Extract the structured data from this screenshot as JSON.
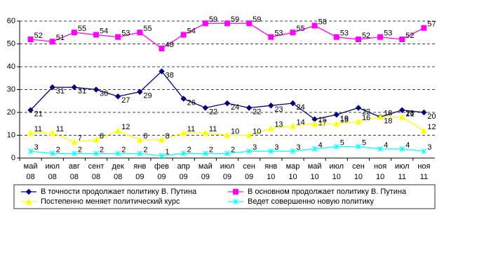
{
  "chart_data": {
    "type": "line",
    "categories": [
      "май 08",
      "июл 08",
      "авг 08",
      "сент 08",
      "дек 08",
      "янв 09",
      "фев 09",
      "апр 09",
      "май 09",
      "июл 09",
      "сен 09",
      "янв 10",
      "мар 10",
      "май 10",
      "июл 10",
      "сен 10",
      "ноя 10",
      "июл 11",
      "ноя 11"
    ],
    "series": [
      {
        "name": "В точности продолжает политику В. Путина",
        "color": "#000080",
        "marker": "diamond",
        "values": [
          21,
          31,
          31,
          30,
          27,
          29,
          38,
          26,
          22,
          24,
          22,
          23,
          24,
          17,
          19,
          22,
          18,
          21,
          20
        ]
      },
      {
        "name": "В основном продолжает политику В. Путина",
        "color": "#ff00ff",
        "marker": "square",
        "values": [
          52,
          51,
          55,
          54,
          53,
          55,
          48,
          54,
          59,
          59,
          59,
          53,
          55,
          58,
          53,
          52,
          53,
          52,
          57
        ]
      },
      {
        "name": "Постепенно меняет политический курс",
        "color": "#ffff00",
        "marker": "triangle",
        "values": [
          11,
          11,
          7,
          8,
          12,
          8,
          8,
          11,
          11,
          10,
          10,
          13,
          14,
          15,
          15,
          16,
          18,
          18,
          12
        ]
      },
      {
        "name": "Ведет совершенно новую политику",
        "color": "#00ffff",
        "marker": "star",
        "values": [
          3,
          2,
          2,
          2,
          2,
          2,
          1,
          2,
          2,
          2,
          3,
          3,
          3,
          4,
          5,
          5,
          4,
          4,
          3
        ]
      }
    ],
    "ylim": [
      0,
      60
    ],
    "yticks": [
      0,
      10,
      20,
      30,
      40,
      50,
      60
    ],
    "grid": true
  }
}
